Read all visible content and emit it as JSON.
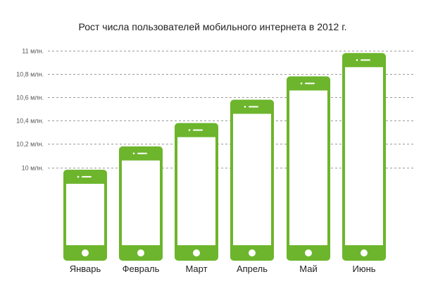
{
  "chart_data": {
    "type": "bar",
    "title": "Рост числа пользователей мобильного интернета в 2012 г.",
    "xlabel": "",
    "ylabel": "",
    "categories": [
      "Январь",
      "Февраль",
      "Март",
      "Апрель",
      "Май",
      "Июнь"
    ],
    "values": [
      9.98,
      10.18,
      10.38,
      10.58,
      10.78,
      10.98
    ],
    "yticks": [
      10,
      10.2,
      10.4,
      10.6,
      10.8,
      11
    ],
    "ytick_labels": [
      "10 млн.",
      "10,2 млн.",
      "10,4 млн.",
      "10,6 млн.",
      "10,8 млн.",
      "11 млн."
    ],
    "ylim": [
      9.2,
      11
    ],
    "grid": true,
    "legend": "none",
    "bar_style": "smartphone-icon",
    "colors": {
      "bar": "#6db52c",
      "screen": "#ffffff",
      "grid": "#9a9a9a",
      "text": "#222222"
    }
  }
}
